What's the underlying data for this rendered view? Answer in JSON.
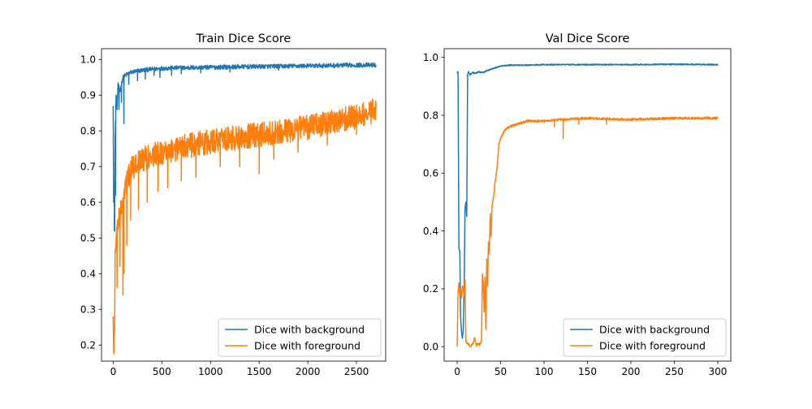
{
  "colors": {
    "background_series": "#1f77b4",
    "foreground_series": "#ff7f0e",
    "axes": "#000000",
    "legend_border": "#cccccc"
  },
  "chart_data": [
    {
      "type": "line",
      "title": "Train Dice Score",
      "xlabel": "",
      "ylabel": "",
      "xlim": [
        -120,
        2800
      ],
      "ylim": [
        0.155,
        1.03
      ],
      "xticks": [
        0,
        500,
        1000,
        1500,
        2000,
        2500
      ],
      "yticks": [
        0.2,
        0.3,
        0.4,
        0.5,
        0.6,
        0.7,
        0.8,
        0.9,
        1.0
      ],
      "ytick_labels": [
        "0.2",
        "0.3",
        "0.4",
        "0.5",
        "0.6",
        "0.7",
        "0.8",
        "0.9",
        "1.0"
      ],
      "grid": false,
      "legend_position": "lower-right",
      "series": [
        {
          "name": "Dice with background",
          "color": "#1f77b4",
          "noise": 0.006,
          "points": [
            [
              0,
              0.87
            ],
            [
              5,
              0.6
            ],
            [
              10,
              0.65
            ],
            [
              15,
              0.52
            ],
            [
              20,
              0.78
            ],
            [
              30,
              0.9
            ],
            [
              40,
              0.86
            ],
            [
              50,
              0.93
            ],
            [
              70,
              0.91
            ],
            [
              100,
              0.95
            ],
            [
              150,
              0.96
            ],
            [
              200,
              0.965
            ],
            [
              300,
              0.97
            ],
            [
              500,
              0.975
            ],
            [
              800,
              0.977
            ],
            [
              1000,
              0.978
            ],
            [
              1500,
              0.98
            ],
            [
              2000,
              0.982
            ],
            [
              2500,
              0.984
            ],
            [
              2700,
              0.984
            ]
          ],
          "spikes": [
            [
              12,
              0.52
            ],
            [
              25,
              0.62
            ],
            [
              60,
              0.86
            ],
            [
              85,
              0.88
            ],
            [
              110,
              0.82
            ],
            [
              160,
              0.93
            ],
            [
              250,
              0.94
            ],
            [
              330,
              0.945
            ],
            [
              420,
              0.955
            ],
            [
              480,
              0.95
            ],
            [
              600,
              0.955
            ],
            [
              700,
              0.96
            ],
            [
              900,
              0.962
            ],
            [
              1200,
              0.965
            ],
            [
              1700,
              0.97
            ]
          ]
        },
        {
          "name": "Dice with foreground",
          "color": "#ff7f0e",
          "noise": 0.035,
          "points": [
            [
              0,
              0.28
            ],
            [
              5,
              0.18
            ],
            [
              10,
              0.22
            ],
            [
              15,
              0.25
            ],
            [
              20,
              0.45
            ],
            [
              30,
              0.5
            ],
            [
              50,
              0.55
            ],
            [
              80,
              0.58
            ],
            [
              120,
              0.64
            ],
            [
              200,
              0.7
            ],
            [
              300,
              0.72
            ],
            [
              500,
              0.74
            ],
            [
              800,
              0.76
            ],
            [
              1000,
              0.77
            ],
            [
              1500,
              0.79
            ],
            [
              2000,
              0.81
            ],
            [
              2500,
              0.84
            ],
            [
              2700,
              0.86
            ]
          ],
          "spikes": [
            [
              8,
              0.175
            ],
            [
              40,
              0.36
            ],
            [
              70,
              0.42
            ],
            [
              100,
              0.34
            ],
            [
              110,
              0.4
            ],
            [
              140,
              0.48
            ],
            [
              180,
              0.55
            ],
            [
              260,
              0.58
            ],
            [
              350,
              0.6
            ],
            [
              460,
              0.63
            ],
            [
              560,
              0.64
            ],
            [
              700,
              0.66
            ],
            [
              850,
              0.67
            ],
            [
              1100,
              0.7
            ],
            [
              1300,
              0.7
            ],
            [
              1500,
              0.68
            ],
            [
              1650,
              0.72
            ],
            [
              1900,
              0.74
            ],
            [
              2200,
              0.76
            ],
            [
              2500,
              0.79
            ],
            [
              2650,
              0.82
            ]
          ]
        }
      ]
    },
    {
      "type": "line",
      "title": "Val Dice Score",
      "xlabel": "",
      "ylabel": "",
      "xlim": [
        -15,
        315
      ],
      "ylim": [
        -0.05,
        1.03
      ],
      "xticks": [
        0,
        50,
        100,
        150,
        200,
        250,
        300
      ],
      "yticks": [
        0.0,
        0.2,
        0.4,
        0.6,
        0.8,
        1.0
      ],
      "ytick_labels": [
        "0.0",
        "0.2",
        "0.4",
        "0.6",
        "0.8",
        "1.0"
      ],
      "grid": false,
      "legend_position": "lower-right",
      "series": [
        {
          "name": "Dice with background",
          "color": "#1f77b4",
          "noise": 0.002,
          "points": [
            [
              0,
              0.945
            ],
            [
              0.5,
              0.95
            ],
            [
              1,
              0.95
            ],
            [
              2,
              0.34
            ],
            [
              3,
              0.33
            ],
            [
              4,
              0.1
            ],
            [
              5,
              0.05
            ],
            [
              6,
              0.03
            ],
            [
              7,
              0.06
            ],
            [
              8,
              0.2
            ],
            [
              9,
              0.48
            ],
            [
              10,
              0.5
            ],
            [
              11,
              0.45
            ],
            [
              12,
              0.94
            ],
            [
              13,
              0.95
            ],
            [
              15,
              0.94
            ],
            [
              18,
              0.948
            ],
            [
              20,
              0.945
            ],
            [
              25,
              0.95
            ],
            [
              30,
              0.948
            ],
            [
              35,
              0.955
            ],
            [
              40,
              0.96
            ],
            [
              45,
              0.965
            ],
            [
              50,
              0.97
            ],
            [
              60,
              0.973
            ],
            [
              80,
              0.973
            ],
            [
              100,
              0.975
            ],
            [
              150,
              0.975
            ],
            [
              200,
              0.975
            ],
            [
              250,
              0.976
            ],
            [
              300,
              0.975
            ]
          ],
          "spikes": []
        },
        {
          "name": "Dice with foreground",
          "color": "#ff7f0e",
          "noise": 0.004,
          "points": [
            [
              0,
              0.0
            ],
            [
              1,
              0.19
            ],
            [
              2,
              0.22
            ],
            [
              3,
              0.18
            ],
            [
              4,
              0.2
            ],
            [
              5,
              0.17
            ],
            [
              6,
              0.21
            ],
            [
              7,
              0.2
            ],
            [
              8,
              0.18
            ],
            [
              9,
              0.23
            ],
            [
              10,
              0.02
            ],
            [
              12,
              0.01
            ],
            [
              14,
              0.005
            ],
            [
              16,
              0.002
            ],
            [
              18,
              0.01
            ],
            [
              20,
              0.03
            ],
            [
              22,
              0.005
            ],
            [
              24,
              0.01
            ],
            [
              26,
              0.005
            ],
            [
              28,
              0.02
            ],
            [
              29,
              0.25
            ],
            [
              30,
              0.22
            ],
            [
              31,
              0.12
            ],
            [
              32,
              0.24
            ],
            [
              33,
              0.06
            ],
            [
              34,
              0.3
            ],
            [
              35,
              0.21
            ],
            [
              36,
              0.36
            ],
            [
              37,
              0.32
            ],
            [
              38,
              0.46
            ],
            [
              39,
              0.38
            ],
            [
              40,
              0.48
            ],
            [
              42,
              0.52
            ],
            [
              44,
              0.58
            ],
            [
              46,
              0.62
            ],
            [
              48,
              0.7
            ],
            [
              50,
              0.72
            ],
            [
              55,
              0.75
            ],
            [
              60,
              0.76
            ],
            [
              70,
              0.77
            ],
            [
              80,
              0.78
            ],
            [
              100,
              0.78
            ],
            [
              120,
              0.785
            ],
            [
              150,
              0.79
            ],
            [
              200,
              0.785
            ],
            [
              250,
              0.79
            ],
            [
              300,
              0.79
            ]
          ],
          "spikes": [
            [
              122,
              0.72
            ],
            [
              112,
              0.76
            ],
            [
              140,
              0.77
            ],
            [
              172,
              0.77
            ]
          ]
        }
      ]
    }
  ]
}
